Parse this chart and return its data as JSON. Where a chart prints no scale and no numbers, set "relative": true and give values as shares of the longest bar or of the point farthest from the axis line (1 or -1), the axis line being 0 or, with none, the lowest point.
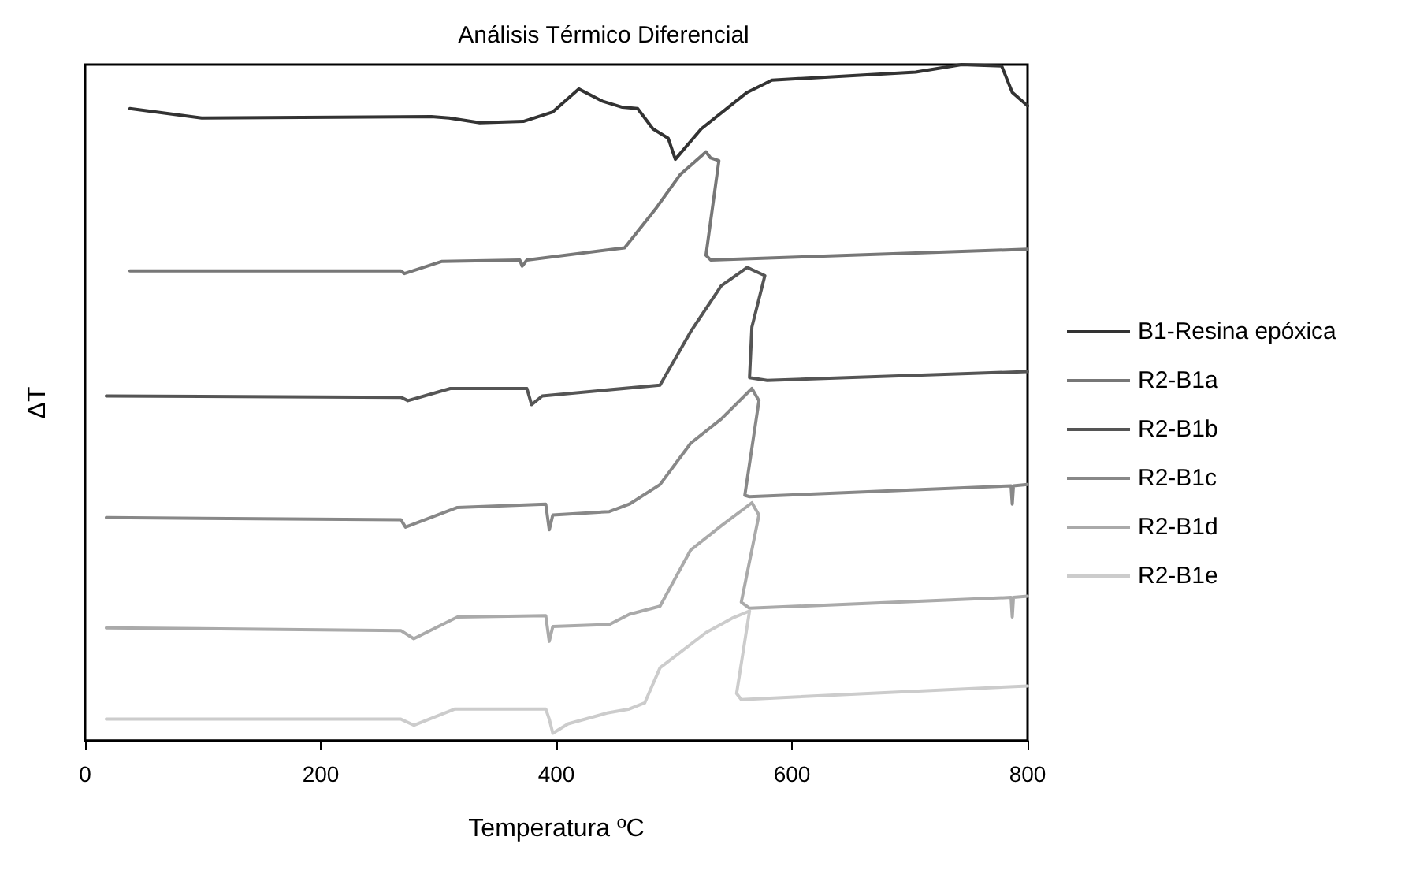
{
  "chart_data": {
    "type": "line",
    "title": "Análisis Térmico Diferencial",
    "xlabel": "Temperatura ºC",
    "ylabel": "ΔT",
    "relative": true,
    "xlim": [
      0,
      800
    ],
    "xticks": [
      0,
      200,
      400,
      600,
      800
    ],
    "grid": false,
    "legend": "right",
    "marker": "none",
    "line_style": "solid",
    "series": [
      {
        "name": "B1-Resina epóxica",
        "color": "#333333",
        "x": [
          38,
          99,
          294,
          309,
          335,
          372,
          397,
          419,
          439,
          456,
          469,
          482,
          495,
          501,
          523,
          562,
          583,
          705,
          744,
          778,
          787,
          800
        ],
        "values": [
          0.935,
          0.921,
          0.923,
          0.921,
          0.914,
          0.916,
          0.93,
          0.964,
          0.946,
          0.937,
          0.935,
          0.905,
          0.891,
          0.86,
          0.905,
          0.959,
          0.977,
          0.989,
          1.0,
          0.998,
          0.959,
          0.939
        ]
      },
      {
        "name": "R2-B1a",
        "color": "#777777",
        "x": [
          38,
          268,
          271,
          303,
          369,
          371,
          375,
          458,
          484,
          505,
          527,
          531,
          538,
          527,
          531,
          800
        ],
        "values": [
          0.695,
          0.695,
          0.691,
          0.709,
          0.711,
          0.702,
          0.711,
          0.729,
          0.786,
          0.837,
          0.871,
          0.862,
          0.858,
          0.718,
          0.711,
          0.727
        ]
      },
      {
        "name": "R2-B1b",
        "color": "#555555",
        "x": [
          18,
          268,
          274,
          310,
          375,
          379,
          388,
          488,
          514,
          540,
          562,
          577,
          566,
          564,
          579,
          800
        ],
        "values": [
          0.51,
          0.508,
          0.503,
          0.521,
          0.521,
          0.497,
          0.51,
          0.526,
          0.605,
          0.673,
          0.7,
          0.688,
          0.612,
          0.537,
          0.533,
          0.546
        ]
      },
      {
        "name": "R2-B1c",
        "color": "#888888",
        "x": [
          18,
          268,
          272,
          316,
          391,
          394,
          397,
          445,
          462,
          488,
          514,
          540,
          566,
          572,
          560,
          564,
          786,
          787,
          788,
          800
        ],
        "values": [
          0.33,
          0.327,
          0.316,
          0.345,
          0.35,
          0.312,
          0.334,
          0.339,
          0.35,
          0.379,
          0.44,
          0.476,
          0.521,
          0.503,
          0.363,
          0.361,
          0.377,
          0.35,
          0.377,
          0.379
        ]
      },
      {
        "name": "R2-B1d",
        "color": "#aaaaaa",
        "x": [
          18,
          268,
          279,
          316,
          391,
          394,
          397,
          445,
          462,
          488,
          514,
          540,
          566,
          572,
          557,
          564,
          786,
          787,
          788,
          800
        ],
        "values": [
          0.167,
          0.163,
          0.151,
          0.183,
          0.185,
          0.147,
          0.169,
          0.172,
          0.187,
          0.199,
          0.282,
          0.318,
          0.352,
          0.334,
          0.205,
          0.196,
          0.212,
          0.183,
          0.212,
          0.214
        ]
      },
      {
        "name": "R2-B1e",
        "color": "#cccccc",
        "x": [
          18,
          268,
          279,
          314,
          391,
          394,
          397,
          410,
          443,
          462,
          475,
          488,
          527,
          549,
          564,
          553,
          557,
          800
        ],
        "values": [
          0.032,
          0.032,
          0.023,
          0.047,
          0.047,
          0.032,
          0.011,
          0.025,
          0.041,
          0.047,
          0.056,
          0.108,
          0.16,
          0.181,
          0.192,
          0.07,
          0.061,
          0.081
        ]
      }
    ]
  }
}
